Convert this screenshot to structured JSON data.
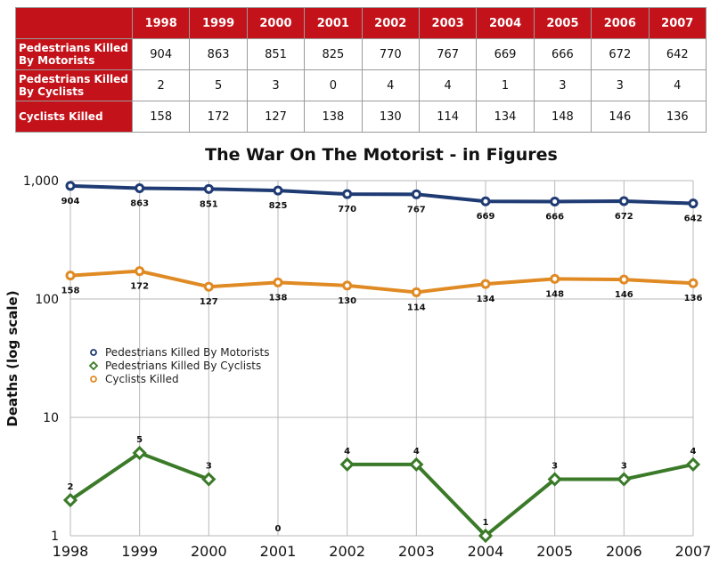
{
  "table": {
    "years": [
      "1998",
      "1999",
      "2000",
      "2001",
      "2002",
      "2003",
      "2004",
      "2005",
      "2006",
      "2007"
    ],
    "rows": [
      {
        "label": "Pedestrians Killed By Motorists",
        "values": [
          "904",
          "863",
          "851",
          "825",
          "770",
          "767",
          "669",
          "666",
          "672",
          "642"
        ]
      },
      {
        "label": "Pedestrians Killed By Cyclists",
        "values": [
          "2",
          "5",
          "3",
          "0",
          "4",
          "4",
          "1",
          "3",
          "3",
          "4"
        ]
      },
      {
        "label": "Cyclists Killed",
        "values": [
          "158",
          "172",
          "127",
          "138",
          "130",
          "114",
          "134",
          "148",
          "146",
          "136"
        ]
      }
    ]
  },
  "chart_data": {
    "type": "line",
    "title": "The War On The Motorist - in Figures",
    "ylabel": "Deaths (log scale)",
    "xlabel": "",
    "yscale": "log",
    "ylim": [
      1,
      1000
    ],
    "grid": true,
    "legend_position": "left-middle",
    "y_ticks": [
      "1",
      "10",
      "100",
      "1,000"
    ],
    "categories": [
      "1998",
      "1999",
      "2000",
      "2001",
      "2002",
      "2003",
      "2004",
      "2005",
      "2006",
      "2007"
    ],
    "series": [
      {
        "name": "Pedestrians Killed By Motorists",
        "color": "#1f3b73",
        "marker": "circle",
        "values": [
          904,
          863,
          851,
          825,
          770,
          767,
          669,
          666,
          672,
          642
        ]
      },
      {
        "name": "Pedestrians Killed By Cyclists",
        "color": "#3a7a28",
        "marker": "diamond",
        "values": [
          2,
          5,
          3,
          0,
          4,
          4,
          1,
          3,
          3,
          4
        ]
      },
      {
        "name": "Cyclists Killed",
        "color": "#e08a24",
        "marker": "circle",
        "values": [
          158,
          172,
          127,
          138,
          130,
          114,
          134,
          148,
          146,
          136
        ]
      }
    ]
  }
}
